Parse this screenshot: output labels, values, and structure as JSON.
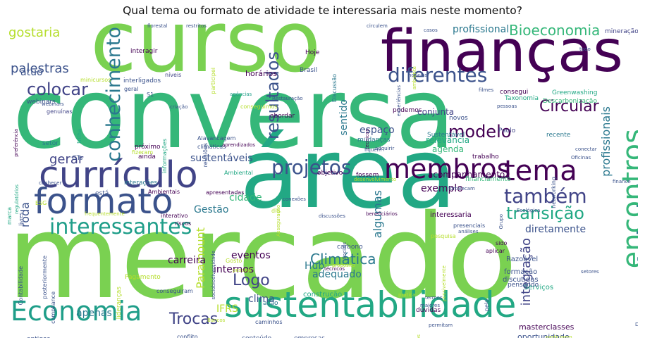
{
  "title": "Qual tema ou formato de atividade te interessaria mais neste momento?",
  "colors": {
    "green": "#7ad151",
    "teal": "#22a884",
    "mint": "#35b779",
    "blue": "#2a788e",
    "slate": "#414487",
    "purple": "#440154",
    "navy": "#3b528b",
    "yellow": "#fde725",
    "lime": "#b5de2b",
    "sea": "#1f9e89"
  },
  "words": [
    {
      "text": "mercado",
      "color": "green"
    },
    {
      "text": "conversa",
      "color": "mint"
    },
    {
      "text": "curso",
      "color": "green"
    },
    {
      "text": "área",
      "color": "teal"
    },
    {
      "text": "finanças",
      "color": "purple"
    },
    {
      "text": "sustentabilidade",
      "color": "teal"
    },
    {
      "text": "currículo",
      "color": "slate"
    },
    {
      "text": "formato",
      "color": "navy"
    },
    {
      "text": "Economia",
      "color": "sea"
    },
    {
      "text": "Atividades",
      "color": "blue"
    },
    {
      "text": "encontros",
      "color": "mint"
    },
    {
      "text": "membros",
      "color": "purple"
    },
    {
      "text": "tema",
      "color": "purple"
    },
    {
      "text": "projetos",
      "color": "navy"
    },
    {
      "text": "interessantes",
      "color": "sea"
    },
    {
      "text": "conhecimento",
      "color": "blue"
    },
    {
      "text": "também",
      "color": "slate"
    },
    {
      "text": "diferentes",
      "color": "navy"
    },
    {
      "text": "modelo",
      "color": "purple"
    },
    {
      "text": "transição",
      "color": "teal"
    },
    {
      "text": "colocar",
      "color": "slate"
    },
    {
      "text": "resultados",
      "color": "navy"
    },
    {
      "text": "Circular",
      "color": "purple"
    },
    {
      "text": "Logo",
      "color": "slate"
    },
    {
      "text": "Trocas",
      "color": "slate"
    },
    {
      "text": "Climática",
      "color": "blue"
    },
    {
      "text": "Bioeconomia",
      "color": "mint"
    },
    {
      "text": "gostaria",
      "color": "lime"
    },
    {
      "text": "palestras",
      "color": "navy"
    },
    {
      "text": "gerar",
      "color": "slate"
    },
    {
      "text": "roda",
      "color": "navy"
    },
    {
      "text": "profissionais",
      "color": "blue"
    },
    {
      "text": "integração",
      "color": "slate"
    },
    {
      "text": "sustentáveis",
      "color": "navy"
    },
    {
      "text": "Paramount",
      "color": "lime"
    },
    {
      "text": "Gestão",
      "color": "blue"
    },
    {
      "text": "cidade",
      "color": "mint"
    },
    {
      "text": "algumas",
      "color": "blue"
    },
    {
      "text": "exemplo",
      "color": "purple"
    },
    {
      "text": "diretamente",
      "color": "navy"
    },
    {
      "text": "profissional",
      "color": "blue"
    },
    {
      "text": "sentido",
      "color": "blue"
    },
    {
      "text": "espaço",
      "color": "navy"
    },
    {
      "text": "clima",
      "color": "navy"
    },
    {
      "text": "carreira",
      "color": "purple"
    },
    {
      "text": "eventos",
      "color": "purple"
    },
    {
      "text": "internos",
      "color": "purple"
    },
    {
      "text": "adequado",
      "color": "blue"
    },
    {
      "text": "Hub",
      "color": "blue"
    },
    {
      "text": "apenas",
      "color": "blue"
    },
    {
      "text": "IFRS",
      "color": "lime"
    },
    {
      "text": "atuo",
      "color": "navy"
    },
    {
      "text": "acompanhamento",
      "color": "purple"
    },
    {
      "text": "conjunta",
      "color": "slate"
    },
    {
      "text": "agenda",
      "color": "mint"
    },
    {
      "text": "relevância",
      "color": "teal"
    },
    {
      "text": "horários",
      "color": "purple"
    },
    {
      "text": "interessaria",
      "color": "purple"
    },
    {
      "text": "Razoável",
      "color": "navy"
    },
    {
      "text": "formação",
      "color": "navy"
    },
    {
      "text": "discutidas",
      "color": "navy"
    },
    {
      "text": "masterclasses",
      "color": "purple"
    },
    {
      "text": "oportunidade",
      "color": "navy"
    },
    {
      "text": "próprio",
      "color": "navy"
    },
    {
      "text": "Serviços",
      "color": "teal"
    },
    {
      "text": "construção",
      "color": "teal"
    },
    {
      "text": "Greenwashing",
      "color": "teal"
    },
    {
      "text": "Descarbonização",
      "color": "mint"
    },
    {
      "text": "Taxonomia",
      "color": "teal"
    },
    {
      "text": "consegui",
      "color": "purple"
    },
    {
      "text": "mineração",
      "color": "slate"
    },
    {
      "text": "Brasil",
      "color": "navy"
    },
    {
      "text": "Hoje",
      "color": "purple"
    },
    {
      "text": "interagir",
      "color": "purple"
    },
    {
      "text": "interligados",
      "color": "navy"
    },
    {
      "text": "webinars",
      "color": "navy"
    },
    {
      "text": "minicursos",
      "color": "lime"
    },
    {
      "text": "geral",
      "color": "navy"
    },
    {
      "text": "níveis",
      "color": "slate"
    },
    {
      "text": "participei",
      "color": "lime"
    },
    {
      "text": "conseguimos",
      "color": "lime"
    },
    {
      "text": "abordar",
      "color": "purple"
    },
    {
      "text": "podemos",
      "color": "purple"
    },
    {
      "text": "novos",
      "color": "navy"
    },
    {
      "text": "Paulo",
      "color": "slate"
    },
    {
      "text": "recente",
      "color": "blue"
    },
    {
      "text": "trabalho",
      "color": "purple"
    },
    {
      "text": "mudanças",
      "color": "blue"
    },
    {
      "text": "Sustentável",
      "color": "blue"
    },
    {
      "text": "objetivo",
      "color": "purple"
    },
    {
      "text": "fossem",
      "color": "purple"
    },
    {
      "text": "financiamento",
      "color": "mint"
    },
    {
      "text": "Ambiental",
      "color": "teal"
    },
    {
      "text": "reuniões",
      "color": "navy"
    },
    {
      "text": "está",
      "color": "navy"
    },
    {
      "text": "interações",
      "color": "blue"
    },
    {
      "text": "Ambientais",
      "color": "purple"
    },
    {
      "text": "apresentadas",
      "color": "purple"
    },
    {
      "text": "interativo",
      "color": "purple"
    },
    {
      "text": "riscos",
      "color": "purple"
    },
    {
      "text": "GTs",
      "color": "navy"
    },
    {
      "text": "ainda",
      "color": "purple"
    },
    {
      "text": "próximo",
      "color": "purple"
    },
    {
      "text": "setor",
      "color": "blue"
    },
    {
      "text": "genuínas",
      "color": "slate"
    },
    {
      "text": "Alavancagem",
      "color": "navy"
    },
    {
      "text": "climáticas",
      "color": "navy"
    },
    {
      "text": "aprendizados",
      "color": "purple"
    },
    {
      "text": "ação",
      "color": "blue"
    },
    {
      "text": "carbono",
      "color": "navy"
    },
    {
      "text": "sido",
      "color": "purple"
    },
    {
      "text": "aplicar",
      "color": "purple"
    },
    {
      "text": "pensando",
      "color": "navy"
    },
    {
      "text": "dúvidas",
      "color": "purple"
    },
    {
      "text": "conteúdo",
      "color": "navy"
    },
    {
      "text": "empresas",
      "color": "navy"
    },
    {
      "text": "caminhos",
      "color": "navy"
    },
    {
      "text": "conflito",
      "color": "navy"
    },
    {
      "text": "antigos",
      "color": "navy"
    },
    {
      "text": "Contabilidade",
      "color": "navy"
    },
    {
      "text": "compliance",
      "color": "navy"
    },
    {
      "text": "lideranças",
      "color": "lime"
    },
    {
      "text": "conseguiram",
      "color": "navy"
    },
    {
      "text": "Tecnologia",
      "color": "lime"
    },
    {
      "text": "Pagamento",
      "color": "lime"
    },
    {
      "text": "S1",
      "color": "navy"
    },
    {
      "text": "ESG",
      "color": "lime"
    },
    {
      "text": "marca",
      "color": "teal"
    },
    {
      "text": "Discussão",
      "color": "blue"
    },
    {
      "text": "Restauração",
      "color": "navy"
    },
    {
      "text": "agências",
      "color": "sea"
    },
    {
      "text": "preferência",
      "color": "purple"
    },
    {
      "text": "trilha",
      "color": "teal"
    },
    {
      "text": "webinars",
      "color": "navy"
    },
    {
      "text": "fizeram",
      "color": "lime"
    },
    {
      "text": "informações",
      "color": "teal"
    },
    {
      "text": "networking",
      "color": "navy"
    },
    {
      "text": "Oficinas",
      "color": "navy"
    },
    {
      "text": "conectar",
      "color": "navy"
    },
    {
      "text": "finance",
      "color": "navy"
    },
    {
      "text": "Relatórios",
      "color": "slate"
    },
    {
      "text": "Disclosures",
      "color": "navy"
    },
    {
      "text": "regulatórios",
      "color": "teal"
    },
    {
      "text": "Grupo",
      "color": "navy"
    },
    {
      "text": "Ecológica",
      "color": "navy"
    },
    {
      "text": "pesquisa",
      "color": "lime"
    },
    {
      "text": "presenciais",
      "color": "navy"
    },
    {
      "text": "análises",
      "color": "navy"
    },
    {
      "text": "beneficiários",
      "color": "purple"
    },
    {
      "text": "técnicos",
      "color": "purple"
    },
    {
      "text": "Sociais",
      "color": "navy"
    },
    {
      "text": "Asseguração",
      "color": "lime"
    },
    {
      "text": "setores",
      "color": "navy"
    },
    {
      "text": "possivelmente",
      "color": "lime"
    },
    {
      "text": "permitam",
      "color": "navy"
    },
    {
      "text": "maiores",
      "color": "navy"
    },
    {
      "text": "termos",
      "color": "navy"
    },
    {
      "text": "pelo",
      "color": "navy"
    },
    {
      "text": "estudos",
      "color": "lime"
    },
    {
      "text": "café",
      "color": "navy"
    },
    {
      "text": "participem",
      "color": "lime"
    },
    {
      "text": "Gosto",
      "color": "lime"
    },
    {
      "text": "pessoal",
      "color": "lime"
    },
    {
      "text": "dia",
      "color": "lime"
    },
    {
      "text": "discussões",
      "color": "navy"
    },
    {
      "text": "conexões",
      "color": "navy"
    },
    {
      "text": "florestal",
      "color": "navy"
    },
    {
      "text": "restritos",
      "color": "navy"
    },
    {
      "text": "circulem",
      "color": "navy"
    },
    {
      "text": "experiências",
      "color": "navy"
    },
    {
      "text": "notícias",
      "color": "navy"
    },
    {
      "text": "todo",
      "color": "navy"
    },
    {
      "text": "tecnicos",
      "color": "purple"
    },
    {
      "text": "adquirir",
      "color": "navy"
    },
    {
      "text": "fiquem",
      "color": "navy"
    },
    {
      "text": "desenvolvimento",
      "color": "lime"
    },
    {
      "text": "fortalecam",
      "color": "navy"
    },
    {
      "text": "conhecer",
      "color": "navy"
    },
    {
      "text": "frequentemente",
      "color": "lime"
    },
    {
      "text": "criação",
      "color": "navy"
    },
    {
      "text": "sociobiodiversidade",
      "color": "navy"
    },
    {
      "text": "propósito",
      "color": "lime"
    },
    {
      "text": "posteriormente",
      "color": "navy"
    },
    {
      "text": "livres",
      "color": "navy"
    },
    {
      "text": "prática",
      "color": "lime"
    },
    {
      "text": "Bancos",
      "color": "lime"
    },
    {
      "text": "ambiente",
      "color": "lime"
    },
    {
      "text": "casos",
      "color": "navy"
    },
    {
      "text": "filmes",
      "color": "navy"
    },
    {
      "text": "pessoas",
      "color": "navy"
    }
  ]
}
